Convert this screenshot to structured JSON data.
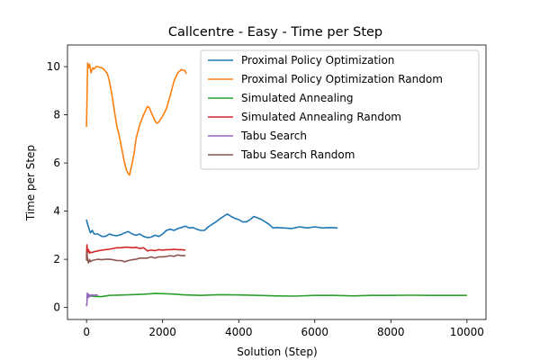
{
  "chart_data": {
    "type": "line",
    "title": "Callcentre - Easy - Time per Step",
    "xlabel": "Solution (Step)",
    "ylabel": "Time per Step",
    "xlim": [
      -500,
      10500
    ],
    "ylim": [
      -0.5,
      10.9
    ],
    "xticks": [
      0,
      2000,
      4000,
      6000,
      8000,
      10000
    ],
    "xtick_labels": [
      "0",
      "2000",
      "4000",
      "6000",
      "8000",
      "10000"
    ],
    "yticks": [
      0,
      2,
      4,
      6,
      8,
      10
    ],
    "ytick_labels": [
      "0",
      "2",
      "4",
      "6",
      "8",
      "10"
    ],
    "grid": false,
    "legend_position": "top-right",
    "series": [
      {
        "name": "Proximal Policy Optimization",
        "color": "#1f77b4",
        "x": [
          0,
          20,
          60,
          100,
          150,
          200,
          300,
          400,
          500,
          600,
          700,
          800,
          900,
          1000,
          1100,
          1200,
          1300,
          1400,
          1500,
          1600,
          1700,
          1800,
          1900,
          2000,
          2100,
          2200,
          2300,
          2400,
          2500,
          2600,
          2700,
          2800,
          2900,
          3000,
          3100,
          3200,
          3300,
          3400,
          3500,
          3600,
          3700,
          3800,
          3900,
          4000,
          4100,
          4200,
          4300,
          4400,
          4500,
          4600,
          4700,
          4800,
          4900,
          5000,
          5200,
          5400,
          5600,
          5800,
          6000,
          6200,
          6400,
          6600
        ],
        "y": [
          3.65,
          3.5,
          3.3,
          3.1,
          3.2,
          3.05,
          3.05,
          2.95,
          2.95,
          3.05,
          3.0,
          2.98,
          3.02,
          3.1,
          3.15,
          3.05,
          3.0,
          3.05,
          2.95,
          2.9,
          2.92,
          3.0,
          2.95,
          3.05,
          3.2,
          3.25,
          3.2,
          3.28,
          3.32,
          3.38,
          3.3,
          3.32,
          3.25,
          3.2,
          3.2,
          3.35,
          3.45,
          3.55,
          3.68,
          3.78,
          3.88,
          3.78,
          3.7,
          3.65,
          3.55,
          3.55,
          3.65,
          3.78,
          3.72,
          3.65,
          3.55,
          3.45,
          3.3,
          3.32,
          3.3,
          3.28,
          3.35,
          3.3,
          3.35,
          3.3,
          3.32,
          3.3
        ]
      },
      {
        "name": "Proximal Policy Optimization Random",
        "color": "#ff7f0e",
        "x": [
          0,
          10,
          30,
          50,
          80,
          120,
          160,
          200,
          250,
          300,
          350,
          400,
          450,
          500,
          550,
          600,
          650,
          700,
          750,
          800,
          850,
          900,
          950,
          1000,
          1050,
          1100,
          1130,
          1200,
          1250,
          1300,
          1400,
          1500,
          1600,
          1650,
          1700,
          1800,
          1850,
          1900,
          2000,
          2100,
          2200,
          2300,
          2400,
          2500,
          2600,
          2620
        ],
        "y": [
          7.5,
          8.5,
          10.15,
          9.95,
          10.1,
          9.75,
          9.95,
          9.9,
          10.0,
          10.0,
          9.98,
          9.95,
          9.9,
          9.8,
          9.7,
          9.4,
          9.0,
          8.5,
          8.0,
          7.5,
          7.2,
          6.8,
          6.4,
          6.0,
          5.7,
          5.55,
          5.5,
          6.0,
          6.4,
          7.0,
          7.6,
          8.0,
          8.35,
          8.3,
          8.1,
          7.75,
          7.65,
          7.7,
          7.95,
          8.25,
          8.8,
          9.4,
          9.75,
          9.88,
          9.82,
          9.7
        ]
      },
      {
        "name": "Simulated Annealing",
        "color": "#2ca02c",
        "x": [
          0,
          50,
          100,
          200,
          400,
          600,
          1000,
          1500,
          1800,
          2200,
          2600,
          3000,
          3500,
          4000,
          4500,
          5000,
          5500,
          6000,
          6500,
          7000,
          7500,
          8000,
          8500,
          9000,
          9500,
          10000
        ],
        "y": [
          0.45,
          0.5,
          0.48,
          0.46,
          0.45,
          0.5,
          0.52,
          0.55,
          0.58,
          0.56,
          0.52,
          0.5,
          0.53,
          0.52,
          0.5,
          0.48,
          0.47,
          0.5,
          0.5,
          0.48,
          0.5,
          0.5,
          0.51,
          0.5,
          0.5,
          0.5
        ]
      },
      {
        "name": "Simulated Annealing Random",
        "color": "#d62728",
        "x": [
          0,
          10,
          30,
          50,
          80,
          100,
          150,
          200,
          300,
          400,
          500,
          600,
          700,
          800,
          900,
          1000,
          1100,
          1200,
          1300,
          1400,
          1500,
          1600,
          1700,
          1800,
          1900,
          2000,
          2100,
          2200,
          2300,
          2400,
          2500,
          2600
        ],
        "y": [
          2.1,
          2.6,
          2.3,
          2.4,
          2.25,
          2.3,
          2.28,
          2.32,
          2.35,
          2.38,
          2.4,
          2.42,
          2.45,
          2.48,
          2.48,
          2.5,
          2.5,
          2.48,
          2.5,
          2.45,
          2.48,
          2.35,
          2.38,
          2.36,
          2.4,
          2.38,
          2.4,
          2.4,
          2.42,
          2.4,
          2.4,
          2.38
        ]
      },
      {
        "name": "Tabu Search",
        "color": "#9467bd",
        "x": [
          0,
          10,
          20,
          40,
          60,
          80,
          100,
          150,
          200,
          250,
          300
        ],
        "y": [
          0.05,
          0.2,
          0.6,
          0.4,
          0.55,
          0.45,
          0.5,
          0.52,
          0.5,
          0.52,
          0.5
        ]
      },
      {
        "name": "Tabu Search Random",
        "color": "#8c564b",
        "x": [
          0,
          10,
          30,
          50,
          80,
          100,
          150,
          200,
          300,
          400,
          500,
          600,
          700,
          800,
          900,
          1000,
          1100,
          1200,
          1300,
          1400,
          1500,
          1600,
          1700,
          1800,
          1900,
          2000,
          2100,
          2200,
          2300,
          2400,
          2500,
          2600
        ],
        "y": [
          1.95,
          2.3,
          1.95,
          1.85,
          2.0,
          1.9,
          1.95,
          1.97,
          2.0,
          1.98,
          2.0,
          2.0,
          1.98,
          1.95,
          1.95,
          1.9,
          1.95,
          1.98,
          2.0,
          2.05,
          2.05,
          2.05,
          2.1,
          2.05,
          2.1,
          2.1,
          2.12,
          2.15,
          2.12,
          2.18,
          2.15,
          2.15
        ]
      }
    ]
  }
}
